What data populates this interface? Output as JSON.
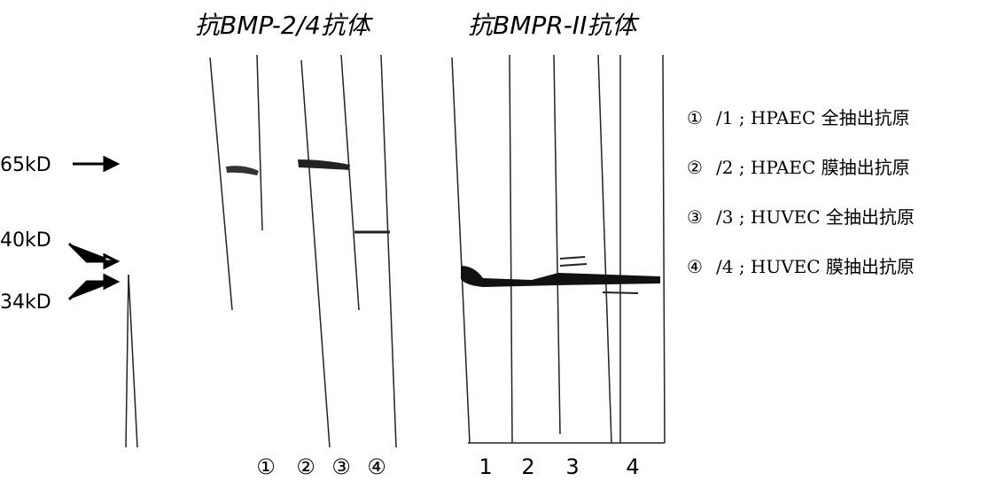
{
  "panels": [
    {
      "title": "抗BMP-2/4抗体",
      "lanes": [
        "①",
        "②",
        "③",
        "④"
      ]
    },
    {
      "title": "抗BMPR-II抗体",
      "lanes": [
        "1",
        "2",
        "3",
        "4"
      ]
    }
  ],
  "markers": [
    "65kD",
    "40kD",
    "34kD"
  ],
  "legend": [
    {
      "symbol": "①",
      "text": "/1 ; HPAEC 全抽出抗原"
    },
    {
      "symbol": "②",
      "text": "/2 ; HPAEC 膜抽出抗原"
    },
    {
      "symbol": "③",
      "text": "/3 ; HUVEC 全抽出抗原"
    },
    {
      "symbol": "④",
      "text": "/4 ; HUVEC 膜抽出抗原"
    }
  ]
}
